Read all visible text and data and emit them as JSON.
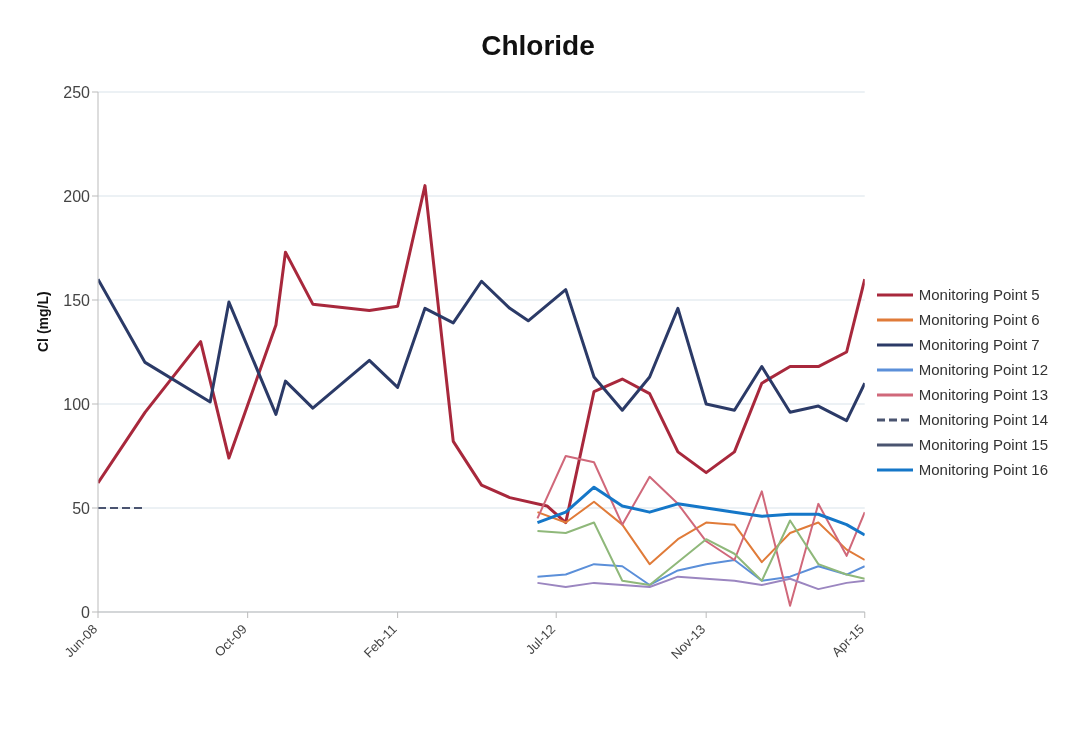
{
  "chart_data": {
    "type": "line",
    "title": "Chloride",
    "ylabel": "Cl (mg/L)",
    "ylim": [
      0,
      250
    ],
    "yticks": [
      0,
      50,
      100,
      150,
      200,
      250
    ],
    "xlim": [
      "2008-06",
      "2015-04"
    ],
    "xticks": [
      {
        "value": "2008-06",
        "label": "Jun-08"
      },
      {
        "value": "2009-10",
        "label": "Oct-09"
      },
      {
        "value": "2011-02",
        "label": "Feb-11"
      },
      {
        "value": "2012-07",
        "label": "Jul-12"
      },
      {
        "value": "2013-11",
        "label": "Nov-13"
      },
      {
        "value": "2015-04",
        "label": "Apr-15"
      }
    ],
    "grid": "y",
    "legend": "right",
    "marker": "none",
    "line_style": "solid",
    "series": [
      {
        "name": "Monitoring Point 5",
        "color": "#a8283c",
        "x": [
          "2008-06",
          "2008-11",
          "2009-05",
          "2009-08",
          "2010-01",
          "2010-02",
          "2010-05",
          "2010-11",
          "2011-02",
          "2011-05",
          "2011-08",
          "2011-11",
          "2012-02",
          "2012-06",
          "2012-08",
          "2012-11",
          "2013-02",
          "2013-05",
          "2013-08",
          "2013-11",
          "2014-02",
          "2014-05",
          "2014-08",
          "2014-11",
          "2015-02",
          "2015-04"
        ],
        "values": [
          62,
          96,
          130,
          74,
          138,
          173,
          148,
          145,
          147,
          205,
          82,
          61,
          55,
          51,
          43,
          106,
          112,
          105,
          77,
          67,
          77,
          110,
          118,
          118,
          125,
          160
        ]
      },
      {
        "name": "Monitoring Point 6",
        "color": "#e07b39",
        "x": [
          "2012-05",
          "2012-08",
          "2012-11",
          "2013-02",
          "2013-05",
          "2013-08",
          "2013-11",
          "2014-02",
          "2014-05",
          "2014-08",
          "2014-11",
          "2015-02",
          "2015-04"
        ],
        "values": [
          48,
          43,
          53,
          42,
          23,
          35,
          43,
          42,
          24,
          38,
          43,
          30,
          25
        ]
      },
      {
        "name": "Monitoring Point 7",
        "color": "#2b3a67",
        "x": [
          "2008-06",
          "2008-11",
          "2009-06",
          "2009-08",
          "2010-01",
          "2010-02",
          "2010-05",
          "2010-11",
          "2011-02",
          "2011-05",
          "2011-08",
          "2011-11",
          "2012-02",
          "2012-04",
          "2012-08",
          "2012-11",
          "2013-02",
          "2013-05",
          "2013-08",
          "2013-11",
          "2014-02",
          "2014-05",
          "2014-08",
          "2014-11",
          "2015-02",
          "2015-04"
        ],
        "values": [
          160,
          120,
          101,
          149,
          95,
          111,
          98,
          121,
          108,
          146,
          139,
          159,
          146,
          140,
          155,
          113,
          97,
          113,
          146,
          100,
          97,
          118,
          96,
          99,
          92,
          110
        ]
      },
      {
        "name": "Monitoring Point 12",
        "color": "#5b8fd9",
        "x": [
          "2012-05",
          "2012-08",
          "2012-11",
          "2013-02",
          "2013-05",
          "2013-08",
          "2013-11",
          "2014-02",
          "2014-05",
          "2014-08",
          "2014-11",
          "2015-02",
          "2015-04"
        ],
        "values": [
          17,
          18,
          23,
          22,
          13,
          20,
          23,
          25,
          15,
          17,
          22,
          18,
          22
        ]
      },
      {
        "name": "Monitoring Point 13",
        "color": "#d0687a",
        "x": [
          "2012-05",
          "2012-08",
          "2012-11",
          "2013-02",
          "2013-05",
          "2013-08",
          "2013-11",
          "2014-02",
          "2014-05",
          "2014-08",
          "2014-11",
          "2015-02",
          "2015-04"
        ],
        "values": [
          45,
          75,
          72,
          42,
          65,
          52,
          34,
          25,
          58,
          3,
          52,
          27,
          48
        ]
      },
      {
        "name": "Monitoring Point 14",
        "color": "#4a5470",
        "line_style": "dashed",
        "x": [
          "2008-06",
          "2008-11"
        ],
        "values": [
          50,
          50
        ]
      },
      {
        "name": "Monitoring Point 15",
        "color": "#4a5470"
      },
      {
        "name": "Monitoring Point 16",
        "color": "#1577c8",
        "x": [
          "2012-05",
          "2012-08",
          "2012-11",
          "2013-02",
          "2013-05",
          "2013-08",
          "2013-11",
          "2014-02",
          "2014-05",
          "2014-08",
          "2014-11",
          "2015-02",
          "2015-04"
        ],
        "values": [
          43,
          48,
          60,
          51,
          48,
          52,
          50,
          48,
          46,
          47,
          47,
          42,
          37
        ]
      },
      {
        "color": "#8fb87a",
        "x": [
          "2012-05",
          "2012-08",
          "2012-11",
          "2013-02",
          "2013-05",
          "2013-11",
          "2014-02",
          "2014-05",
          "2014-08",
          "2014-11",
          "2015-02",
          "2015-04"
        ],
        "values": [
          39,
          38,
          43,
          15,
          13,
          35,
          28,
          15,
          44,
          23,
          18,
          16
        ]
      },
      {
        "color": "#9b86c0",
        "x": [
          "2012-05",
          "2012-08",
          "2012-11",
          "2013-02",
          "2013-05",
          "2013-08",
          "2013-11",
          "2014-02",
          "2014-05",
          "2014-08",
          "2014-11",
          "2015-02",
          "2015-04"
        ],
        "values": [
          14,
          12,
          14,
          13,
          12,
          17,
          16,
          15,
          13,
          16,
          11,
          14,
          15
        ]
      }
    ]
  }
}
